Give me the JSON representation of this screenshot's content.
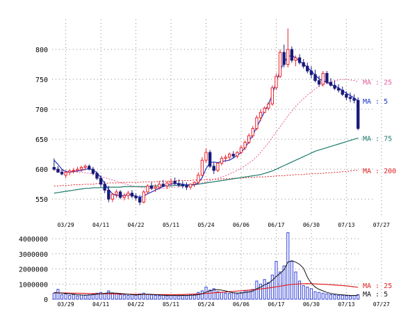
{
  "colors": {
    "up": "#e8202a",
    "down": "#1a1a7a",
    "ma5": "#1c35c9",
    "ma25": "#e65a9a",
    "ma75": "#1b7a6a",
    "ma200": "#e02020",
    "vol": "#2f3fd6",
    "volma5": "#111111",
    "volma25": "#e02020",
    "grid": "#888888"
  },
  "chart_data": [
    {
      "type": "candlestick",
      "ylim": [
        520,
        850
      ],
      "yticks": [
        550,
        600,
        650,
        700,
        750,
        800
      ],
      "x_tick_labels": [
        "03/29",
        "04/11",
        "04/22",
        "05/11",
        "05/24",
        "06/06",
        "06/17",
        "06/30",
        "07/13",
        "07/27"
      ],
      "x_tick_index": [
        3,
        12,
        21,
        30,
        39,
        48,
        57,
        66,
        75,
        84
      ],
      "ohlc": [
        [
          603,
          618,
          598,
          600
        ],
        [
          600,
          605,
          594,
          595
        ],
        [
          595,
          600,
          590,
          592
        ],
        [
          590,
          598,
          585,
          595
        ],
        [
          595,
          600,
          590,
          597
        ],
        [
          597,
          602,
          593,
          598
        ],
        [
          598,
          604,
          595,
          600
        ],
        [
          600,
          606,
          596,
          603
        ],
        [
          603,
          608,
          598,
          605
        ],
        [
          605,
          608,
          598,
          600
        ],
        [
          600,
          604,
          590,
          593
        ],
        [
          593,
          596,
          582,
          585
        ],
        [
          585,
          590,
          570,
          575
        ],
        [
          575,
          580,
          560,
          565
        ],
        [
          565,
          572,
          545,
          550
        ],
        [
          550,
          560,
          545,
          558
        ],
        [
          558,
          566,
          552,
          562
        ],
        [
          562,
          565,
          550,
          553
        ],
        [
          553,
          560,
          548,
          556
        ],
        [
          556,
          564,
          550,
          560
        ],
        [
          560,
          565,
          552,
          555
        ],
        [
          555,
          560,
          548,
          552
        ],
        [
          552,
          557,
          540,
          545
        ],
        [
          545,
          565,
          543,
          562
        ],
        [
          562,
          575,
          558,
          572
        ],
        [
          572,
          578,
          565,
          568
        ],
        [
          568,
          575,
          562,
          570
        ],
        [
          570,
          580,
          566,
          575
        ],
        [
          575,
          582,
          570,
          572
        ],
        [
          572,
          580,
          567,
          577
        ],
        [
          577,
          585,
          572,
          580
        ],
        [
          580,
          586,
          574,
          576
        ],
        [
          576,
          583,
          570,
          574
        ],
        [
          574,
          580,
          568,
          572
        ],
        [
          572,
          578,
          565,
          570
        ],
        [
          570,
          576,
          566,
          575
        ],
        [
          575,
          580,
          570,
          578
        ],
        [
          578,
          595,
          575,
          590
        ],
        [
          590,
          620,
          588,
          615
        ],
        [
          615,
          635,
          610,
          628
        ],
        [
          628,
          632,
          602,
          605
        ],
        [
          605,
          612,
          592,
          598
        ],
        [
          598,
          612,
          595,
          610
        ],
        [
          610,
          622,
          606,
          618
        ],
        [
          618,
          624,
          612,
          620
        ],
        [
          620,
          628,
          615,
          625
        ],
        [
          625,
          630,
          618,
          622
        ],
        [
          622,
          630,
          618,
          628
        ],
        [
          628,
          640,
          625,
          636
        ],
        [
          636,
          648,
          632,
          645
        ],
        [
          645,
          660,
          642,
          656
        ],
        [
          656,
          672,
          652,
          668
        ],
        [
          668,
          690,
          665,
          686
        ],
        [
          686,
          700,
          680,
          695
        ],
        [
          695,
          705,
          694,
          702
        ],
        [
          702,
          712,
          698,
          709
        ],
        [
          709,
          740,
          706,
          736
        ],
        [
          736,
          760,
          732,
          755
        ],
        [
          755,
          800,
          752,
          795
        ],
        [
          795,
          808,
          770,
          775
        ],
        [
          775,
          835,
          770,
          800
        ],
        [
          800,
          805,
          778,
          782
        ],
        [
          782,
          790,
          772,
          786
        ],
        [
          786,
          792,
          775,
          778
        ],
        [
          778,
          784,
          768,
          772
        ],
        [
          772,
          778,
          760,
          764
        ],
        [
          764,
          772,
          752,
          758
        ],
        [
          758,
          766,
          745,
          748
        ],
        [
          748,
          756,
          738,
          742
        ],
        [
          742,
          764,
          738,
          760
        ],
        [
          760,
          764,
          742,
          745
        ],
        [
          745,
          752,
          738,
          740
        ],
        [
          740,
          748,
          732,
          735
        ],
        [
          735,
          742,
          728,
          732
        ],
        [
          732,
          738,
          722,
          725
        ],
        [
          725,
          730,
          715,
          720
        ],
        [
          720,
          728,
          712,
          718
        ],
        [
          718,
          725,
          710,
          715
        ],
        [
          715,
          720,
          665,
          668
        ]
      ],
      "ma5": [
        615,
        608,
        600,
        596,
        595,
        596,
        597,
        598,
        600,
        601,
        599,
        594,
        586,
        576,
        566,
        559,
        556,
        556,
        556,
        558,
        557,
        555,
        553,
        555,
        559,
        562,
        565,
        568,
        571,
        573,
        575,
        576,
        576,
        575,
        574,
        574,
        574,
        577,
        586,
        601,
        611,
        612,
        611,
        613,
        614,
        615,
        619,
        623,
        628,
        636,
        646,
        657,
        670,
        683,
        696,
        708,
        725,
        745,
        765,
        778,
        788,
        790,
        786,
        780,
        776,
        770,
        764,
        757,
        751,
        748,
        745,
        742,
        739,
        736,
        731,
        727,
        723,
        719,
        714
      ],
      "ma25": [
        598,
        598,
        597,
        597,
        596,
        596,
        595,
        595,
        594,
        593,
        592,
        590,
        588,
        586,
        584,
        582,
        580,
        578,
        576,
        574,
        572,
        571,
        570,
        569,
        568,
        568,
        568,
        568,
        568,
        569,
        569,
        570,
        571,
        572,
        572,
        573,
        574,
        575,
        577,
        579,
        581,
        583,
        585,
        587,
        589,
        592,
        595,
        598,
        602,
        606,
        610,
        615,
        621,
        628,
        636,
        644,
        653,
        662,
        671,
        680,
        689,
        697,
        705,
        712,
        718,
        724,
        729,
        734,
        738,
        741,
        744,
        746,
        748,
        749,
        750,
        750,
        749,
        748,
        746
      ],
      "ma75": [
        560,
        561,
        562,
        563,
        564,
        565,
        566,
        567,
        568,
        568,
        569,
        569,
        569,
        569,
        570,
        570,
        570,
        570,
        571,
        571,
        571,
        571,
        571,
        571,
        571,
        572,
        572,
        572,
        572,
        572,
        572,
        573,
        573,
        573,
        573,
        573,
        574,
        575,
        576,
        577,
        578,
        579,
        580,
        581,
        582,
        583,
        584,
        585,
        586,
        587,
        588,
        589,
        590,
        591,
        593,
        595,
        597,
        600,
        603,
        606,
        609,
        612,
        615,
        618,
        621,
        624,
        627,
        630,
        632,
        634,
        636,
        638,
        640,
        642,
        644,
        646,
        648,
        650,
        652
      ],
      "ma200": [
        572,
        572,
        573,
        573,
        573,
        574,
        574,
        574,
        575,
        575,
        575,
        576,
        576,
        576,
        577,
        577,
        577,
        577,
        578,
        578,
        578,
        578,
        578,
        579,
        579,
        579,
        579,
        580,
        580,
        580,
        580,
        580,
        581,
        581,
        581,
        581,
        582,
        582,
        582,
        583,
        583,
        583,
        583,
        584,
        584,
        584,
        585,
        585,
        585,
        586,
        586,
        586,
        587,
        587,
        587,
        588,
        588,
        589,
        589,
        589,
        590,
        590,
        591,
        591,
        591,
        592,
        592,
        593,
        593,
        593,
        594,
        594,
        595,
        595,
        596,
        596,
        597,
        598,
        598
      ],
      "legend": [
        {
          "label": "MA : 25",
          "value": 746,
          "color_key": "ma25"
        },
        {
          "label": "MA : 5",
          "value": 714,
          "color_key": "ma5"
        },
        {
          "label": "MA : 75",
          "value": 652,
          "color_key": "ma75"
        },
        {
          "label": "MA : 200",
          "value": 598,
          "color_key": "ma200"
        }
      ]
    },
    {
      "type": "bar",
      "ylim": [
        0,
        4600000
      ],
      "yticks": [
        0,
        1000000,
        2000000,
        3000000,
        4000000
      ],
      "ytick_labels": [
        "0",
        "1000000",
        "2000000",
        "3000000",
        "4000000"
      ],
      "x_tick_labels": [
        "03/29",
        "04/11",
        "04/22",
        "05/11",
        "05/24",
        "06/06",
        "06/17",
        "06/30",
        "07/13",
        "07/27"
      ],
      "x_tick_index": [
        3,
        12,
        21,
        30,
        39,
        48,
        57,
        66,
        75,
        84
      ],
      "volume": [
        400000,
        650000,
        300000,
        350000,
        250000,
        300000,
        220000,
        280000,
        260000,
        300000,
        350000,
        400000,
        450000,
        380000,
        550000,
        420000,
        350000,
        300000,
        280000,
        250000,
        300000,
        260000,
        350000,
        400000,
        320000,
        280000,
        250000,
        230000,
        260000,
        220000,
        300000,
        250000,
        230000,
        260000,
        240000,
        280000,
        300000,
        450000,
        550000,
        800000,
        600000,
        700000,
        500000,
        450000,
        400000,
        380000,
        420000,
        350000,
        450000,
        550000,
        600000,
        650000,
        1200000,
        1000000,
        1300000,
        1100000,
        1600000,
        2500000,
        1800000,
        2200000,
        4400000,
        2500000,
        1800000,
        1200000,
        900000,
        800000,
        700000,
        500000,
        450000,
        400000,
        350000,
        300000,
        280000,
        250000,
        260000,
        230000,
        220000,
        250000,
        300000
      ],
      "vol_ma5": [
        450000,
        420000,
        400000,
        380000,
        350000,
        330000,
        300000,
        280000,
        270000,
        280000,
        300000,
        330000,
        360000,
        390000,
        420000,
        410000,
        400000,
        380000,
        360000,
        330000,
        300000,
        290000,
        300000,
        320000,
        330000,
        320000,
        300000,
        280000,
        260000,
        250000,
        250000,
        250000,
        250000,
        255000,
        250000,
        260000,
        270000,
        300000,
        360000,
        470000,
        550000,
        620000,
        630000,
        600000,
        550000,
        480000,
        430000,
        410000,
        410000,
        440000,
        480000,
        540000,
        690000,
        800000,
        950000,
        1050000,
        1250000,
        1500000,
        1700000,
        1950000,
        2450000,
        2550000,
        2450000,
        2300000,
        2050000,
        1450000,
        1050000,
        800000,
        650000,
        550000,
        450000,
        380000,
        340000,
        310000,
        290000,
        270000,
        250000,
        250000,
        260000
      ],
      "vol_ma25": [
        420000,
        420000,
        415000,
        410000,
        405000,
        400000,
        395000,
        390000,
        385000,
        380000,
        375000,
        370000,
        365000,
        360000,
        355000,
        350000,
        345000,
        340000,
        335000,
        330000,
        325000,
        320000,
        320000,
        318000,
        315000,
        312000,
        310000,
        308000,
        305000,
        302000,
        300000,
        300000,
        305000,
        310000,
        320000,
        330000,
        340000,
        350000,
        360000,
        380000,
        400000,
        420000,
        440000,
        460000,
        480000,
        500000,
        520000,
        540000,
        560000,
        580000,
        600000,
        620000,
        650000,
        680000,
        710000,
        740000,
        780000,
        820000,
        860000,
        900000,
        950000,
        980000,
        1000000,
        1010000,
        1020000,
        1030000,
        1020000,
        1010000,
        1000000,
        990000,
        980000,
        960000,
        940000,
        920000,
        900000,
        880000,
        850000,
        820000,
        790000
      ],
      "legend": [
        {
          "label": "MA : 25",
          "value": 790000,
          "color_key": "volma25"
        },
        {
          "label": "MA : 5",
          "value": 260000,
          "color_key": "volma5"
        }
      ]
    }
  ]
}
